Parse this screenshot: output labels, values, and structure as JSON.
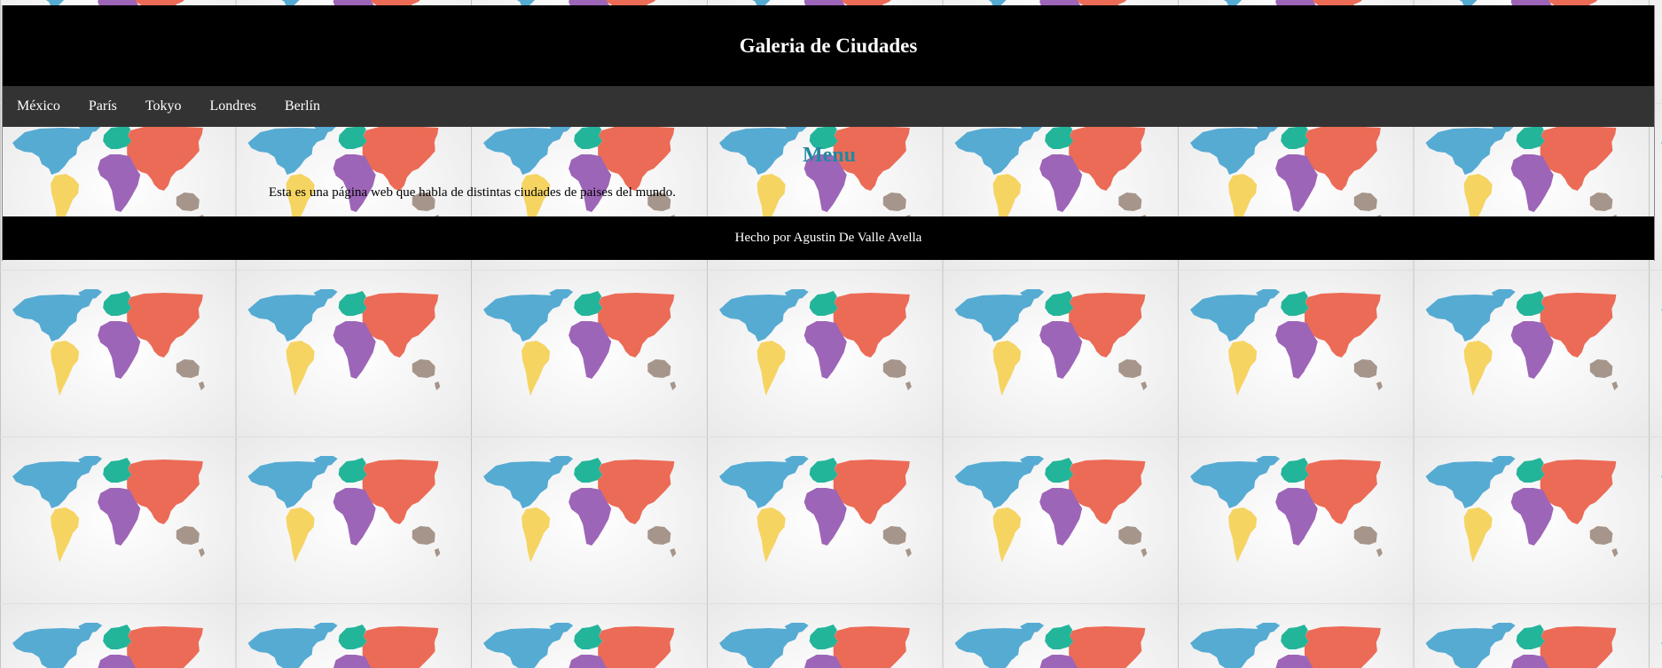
{
  "header": {
    "title": "Galeria de Ciudades"
  },
  "nav": {
    "items": [
      {
        "label": "México"
      },
      {
        "label": "París"
      },
      {
        "label": "Tokyo"
      },
      {
        "label": "Londres"
      },
      {
        "label": "Berlín"
      }
    ]
  },
  "main": {
    "heading": "Menu",
    "intro": "Esta es una página web que habla de distintas ciudades de paises del mundo."
  },
  "footer": {
    "text": "Hecho por Agustin De Valle Avella"
  },
  "colors": {
    "header_bg": "#000000",
    "nav_bg": "#333333",
    "heading": "#2289a1",
    "map_north_america": "#56abd3",
    "map_south_america": "#f6d462",
    "map_europe": "#23b59a",
    "map_asia": "#ec6b56",
    "map_africa": "#9d65b7",
    "map_oceania": "#a6958a"
  },
  "background": {
    "pattern_icon": "world-map-tile"
  }
}
